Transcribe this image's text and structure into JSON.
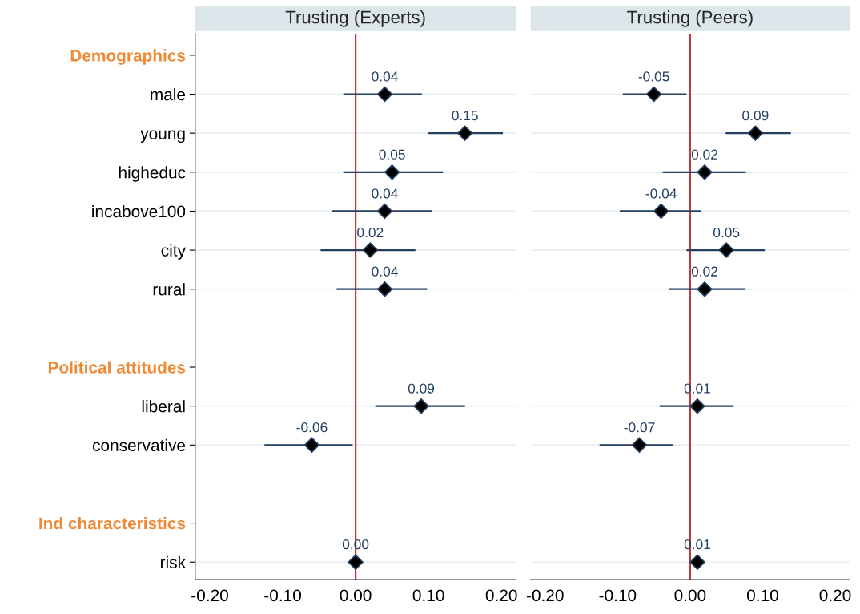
{
  "chart_data": [
    {
      "type": "scatter",
      "orientation": "horizontal",
      "title": "Trusting (Experts)",
      "categories": [
        "Demographics",
        "male",
        "young",
        "higheduc",
        "incabove100",
        "city",
        "rural",
        null,
        "Political attitudes",
        "liberal",
        "conservative",
        null,
        "Ind characteristics",
        "risk"
      ],
      "series": [
        {
          "color": "#000000",
          "values": [
            null,
            0.04,
            0.15,
            0.05,
            0.04,
            0.02,
            0.04,
            null,
            null,
            0.09,
            -0.06,
            null,
            null,
            0.0
          ],
          "errors": [
            null,
            [
              -0.017,
              0.091
            ],
            [
              0.1,
              0.202
            ],
            [
              -0.017,
              0.12
            ],
            [
              -0.032,
              0.105
            ],
            [
              -0.048,
              0.082
            ],
            [
              -0.026,
              0.098
            ],
            null,
            null,
            [
              0.027,
              0.15
            ],
            [
              -0.125,
              -0.004
            ],
            null,
            null,
            null
          ],
          "value_labels": [
            null,
            "0.04",
            "0.15",
            "0.05",
            "0.04",
            "0.02",
            "0.04",
            null,
            null,
            "0.09",
            "-0.06",
            null,
            null,
            "0.00"
          ]
        }
      ],
      "marker": "diamond",
      "grid": "y",
      "xlim": [
        -0.22,
        0.22
      ],
      "xticks": [
        {
          "value": -0.2,
          "label": "-0.20"
        },
        {
          "value": -0.1,
          "label": "-0.10"
        },
        {
          "value": 0,
          "label": "0.00"
        },
        {
          "value": 0.1,
          "label": "0.10"
        },
        {
          "value": 0.2,
          "label": "0.20"
        }
      ],
      "ref_lines": [
        {
          "axis": "x",
          "value": 0,
          "color": "#c0393f"
        }
      ]
    },
    {
      "type": "scatter",
      "orientation": "horizontal",
      "title": "Trusting (Peers)",
      "categories": [
        null,
        null,
        null,
        null,
        null,
        null,
        null,
        null,
        null,
        null,
        null,
        null,
        null,
        null
      ],
      "series": [
        {
          "color": "#000000",
          "values": [
            null,
            -0.05,
            0.09,
            0.02,
            -0.04,
            0.05,
            0.02,
            null,
            null,
            0.01,
            -0.07,
            null,
            null,
            0.01
          ],
          "errors": [
            null,
            [
              -0.093,
              -0.005
            ],
            [
              0.049,
              0.139
            ],
            [
              -0.038,
              0.077
            ],
            [
              -0.097,
              0.015
            ],
            [
              -0.005,
              0.103
            ],
            [
              -0.029,
              0.076
            ],
            null,
            null,
            [
              -0.042,
              0.06
            ],
            [
              -0.125,
              -0.023
            ],
            null,
            null,
            null
          ],
          "value_labels": [
            null,
            "-0.05",
            "0.09",
            "0.02",
            "-0.04",
            "0.05",
            "0.02",
            null,
            null,
            "0.01",
            "-0.07",
            null,
            null,
            "0.01"
          ]
        }
      ],
      "marker": "diamond",
      "grid": "y",
      "tick_labels": "x",
      "xlim": [
        -0.22,
        0.22
      ],
      "xticks": [
        {
          "value": -0.2,
          "label": "-0.20"
        },
        {
          "value": -0.1,
          "label": "-0.10"
        },
        {
          "value": 0,
          "label": "0.00"
        },
        {
          "value": 0.1,
          "label": "0.10"
        },
        {
          "value": 0.2,
          "label": "0.20"
        }
      ],
      "ref_lines": [
        {
          "axis": "x",
          "value": 0,
          "color": "#c0393f"
        }
      ]
    }
  ]
}
